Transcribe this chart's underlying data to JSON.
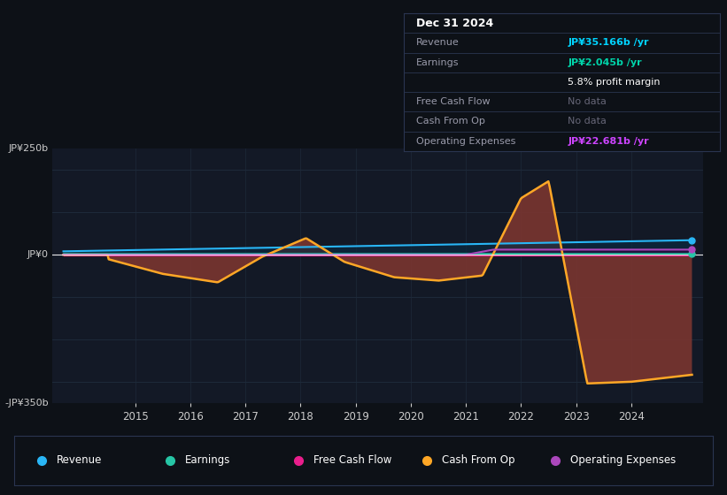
{
  "bg_color": "#0d1117",
  "chart_bg": "#131926",
  "grid_color": "#1e2a3a",
  "ylim": [
    -350,
    250
  ],
  "xlim": [
    2013.5,
    2025.3
  ],
  "ylabel_top": "JP¥250b",
  "ylabel_bottom": "-JP¥350b",
  "ylabel_mid": "JP¥0",
  "xticks": [
    2015,
    2016,
    2017,
    2018,
    2019,
    2020,
    2021,
    2022,
    2023,
    2024
  ],
  "info_title": "Dec 31 2024",
  "info_rows": [
    {
      "label": "Revenue",
      "value": "JP¥35.166b /yr",
      "value_color": "#00d4ff"
    },
    {
      "label": "Earnings",
      "value": "JP¥2.045b /yr",
      "value_color": "#00d4aa"
    },
    {
      "label": "",
      "value": "5.8% profit margin",
      "value_color": "#ffffff"
    },
    {
      "label": "Free Cash Flow",
      "value": "No data",
      "value_color": "#666677"
    },
    {
      "label": "Cash From Op",
      "value": "No data",
      "value_color": "#666677"
    },
    {
      "label": "Operating Expenses",
      "value": "JP¥22.681b /yr",
      "value_color": "#cc44ff"
    }
  ],
  "legend": [
    {
      "label": "Revenue",
      "color": "#29b6f6"
    },
    {
      "label": "Earnings",
      "color": "#26c6a6"
    },
    {
      "label": "Free Cash Flow",
      "color": "#e91e8c"
    },
    {
      "label": "Cash From Op",
      "color": "#ffa726"
    },
    {
      "label": "Operating Expenses",
      "color": "#ab47bc"
    }
  ],
  "rev_color": "#29b6f6",
  "earn_color": "#26c6a6",
  "fcf_color": "#e91e8c",
  "cfop_color": "#ffa726",
  "opex_color": "#ab47bc",
  "rev_fill": "#0a2a40",
  "earn_fill": "#0a3a30",
  "fcf_fill": "#3a1030",
  "cfop_fill": "#7a3530",
  "opex_fill": "#2a1040"
}
